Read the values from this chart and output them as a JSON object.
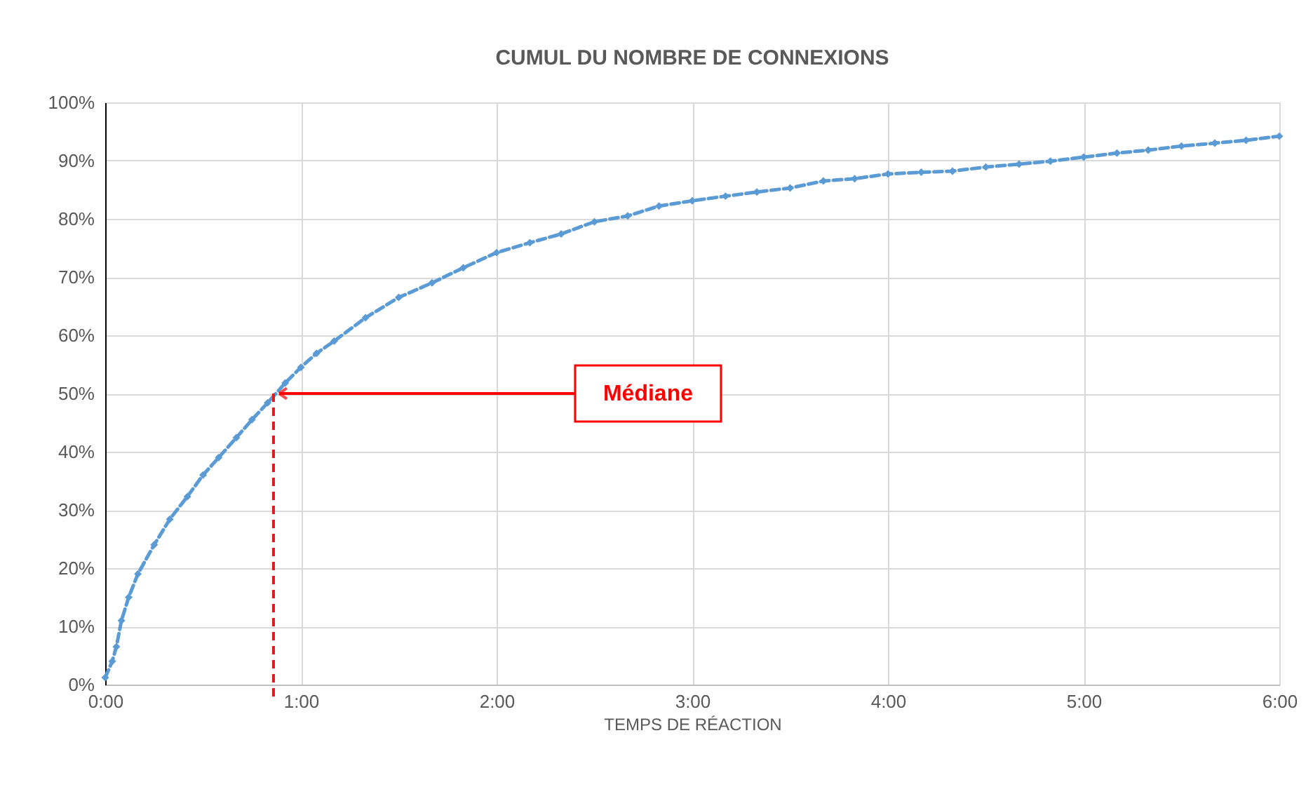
{
  "chart_data": {
    "type": "line",
    "title": "CUMUL DU NOMBRE DE CONNEXIONS",
    "xlabel": "TEMPS DE RÉACTION",
    "x": [
      0,
      0.036,
      0.057,
      0.083,
      0.12,
      0.167,
      0.25,
      0.33,
      0.42,
      0.5,
      0.58,
      0.67,
      0.75,
      0.83,
      0.92,
      1.0,
      1.08,
      1.17,
      1.33,
      1.5,
      1.67,
      1.83,
      2.0,
      2.17,
      2.33,
      2.5,
      2.67,
      2.83,
      3.0,
      3.17,
      3.33,
      3.5,
      3.67,
      3.83,
      4.0,
      4.17,
      4.33,
      4.5,
      4.67,
      4.83,
      5.0,
      5.17,
      5.33,
      5.5,
      5.67,
      5.83,
      6.0
    ],
    "series": [
      {
        "color": "#5b9bd5",
        "values": [
          1.2,
          4,
          6.5,
          11,
          15,
          19,
          24,
          28.4,
          32.3,
          36,
          39,
          42.4,
          45.5,
          48.4,
          51.8,
          54.5,
          56.9,
          59,
          63,
          66.5,
          69,
          71.6,
          74.2,
          75.9,
          77.4,
          79.5,
          80.5,
          82.2,
          83.1,
          83.9,
          84.6,
          85.3,
          86.5,
          86.9,
          87.7,
          88,
          88.2,
          88.9,
          89.4,
          89.9,
          90.6,
          91.3,
          91.8,
          92.5,
          93,
          93.5,
          94.2
        ]
      }
    ],
    "xlim": [
      0,
      6
    ],
    "xticks": [
      {
        "value": 0,
        "label": "0:00"
      },
      {
        "value": 1,
        "label": "1:00"
      },
      {
        "value": 2,
        "label": "2:00"
      },
      {
        "value": 3,
        "label": "3:00"
      },
      {
        "value": 4,
        "label": "4:00"
      },
      {
        "value": 5,
        "label": "5:00"
      },
      {
        "value": 6,
        "label": "6:00"
      }
    ],
    "ylim": [
      0,
      100
    ],
    "yticks": [
      {
        "value": 0,
        "label": "0%"
      },
      {
        "value": 10,
        "label": "10%"
      },
      {
        "value": 20,
        "label": "20%"
      },
      {
        "value": 30,
        "label": "30%"
      },
      {
        "value": 40,
        "label": "40%"
      },
      {
        "value": 50,
        "label": "50%"
      },
      {
        "value": 60,
        "label": "60%"
      },
      {
        "value": 70,
        "label": "70%"
      },
      {
        "value": 80,
        "label": "80%"
      },
      {
        "value": 90,
        "label": "90%"
      },
      {
        "value": 100,
        "label": "100%"
      }
    ],
    "annotations": [
      {
        "text": "Médiane",
        "x": 0.86,
        "y": 50
      }
    ],
    "ref_lines": [
      {
        "axis": "x",
        "value": 0.86,
        "color": "#e31a1c",
        "line_style": "dashed"
      }
    ],
    "grid": true,
    "marker": "diamond",
    "line_style": "dashed"
  }
}
